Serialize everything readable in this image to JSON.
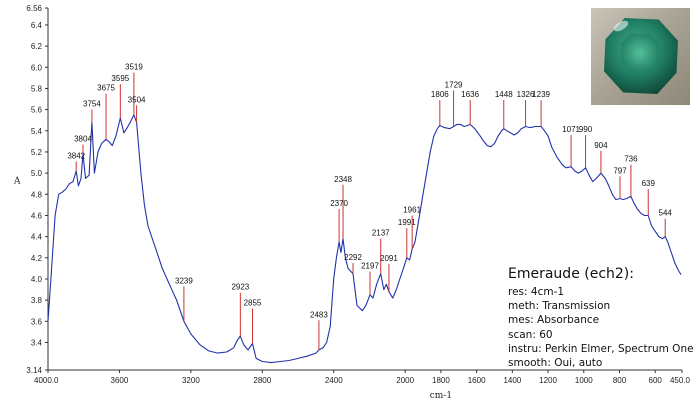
{
  "chart_data": {
    "type": "line",
    "title": "",
    "xlabel": "cm-1",
    "ylabel": "A",
    "xlim": [
      4000.0,
      450.0
    ],
    "ylim": [
      3.14,
      6.56
    ],
    "x_reversed": true,
    "line_color": "#2233aa",
    "peak_marker_color": "#cc3333",
    "x_ticks": [
      "4000.0",
      "3600",
      "3200",
      "2800",
      "2400",
      "2000",
      "1800",
      "1600",
      "1400",
      "1200",
      "1000",
      "800",
      "600",
      "450.0"
    ],
    "y_ticks": [
      "3.14",
      "3.4",
      "3.6",
      "3.8",
      "4.0",
      "4.2",
      "4.4",
      "4.6",
      "4.8",
      "5.0",
      "5.2",
      "5.4",
      "5.6",
      "5.8",
      "6.0",
      "6.2",
      "6.4",
      "6.56"
    ],
    "series": [
      {
        "points": [
          [
            4000,
            3.6
          ],
          [
            3980,
            4.1
          ],
          [
            3960,
            4.6
          ],
          [
            3940,
            4.8
          ],
          [
            3920,
            4.82
          ],
          [
            3900,
            4.85
          ],
          [
            3880,
            4.9
          ],
          [
            3860,
            4.92
          ],
          [
            3842,
            5.02
          ],
          [
            3830,
            4.88
          ],
          [
            3815,
            4.95
          ],
          [
            3804,
            5.18
          ],
          [
            3790,
            4.95
          ],
          [
            3770,
            4.98
          ],
          [
            3754,
            5.48
          ],
          [
            3740,
            5.0
          ],
          [
            3720,
            5.2
          ],
          [
            3700,
            5.28
          ],
          [
            3675,
            5.32
          ],
          [
            3660,
            5.3
          ],
          [
            3640,
            5.26
          ],
          [
            3620,
            5.35
          ],
          [
            3595,
            5.52
          ],
          [
            3575,
            5.38
          ],
          [
            3560,
            5.42
          ],
          [
            3540,
            5.48
          ],
          [
            3519,
            5.55
          ],
          [
            3504,
            5.48
          ],
          [
            3480,
            5.0
          ],
          [
            3460,
            4.7
          ],
          [
            3440,
            4.5
          ],
          [
            3400,
            4.3
          ],
          [
            3360,
            4.1
          ],
          [
            3320,
            3.95
          ],
          [
            3280,
            3.8
          ],
          [
            3239,
            3.6
          ],
          [
            3200,
            3.48
          ],
          [
            3150,
            3.38
          ],
          [
            3100,
            3.32
          ],
          [
            3050,
            3.3
          ],
          [
            3000,
            3.31
          ],
          [
            2960,
            3.35
          ],
          [
            2940,
            3.42
          ],
          [
            2923,
            3.46
          ],
          [
            2905,
            3.38
          ],
          [
            2880,
            3.33
          ],
          [
            2855,
            3.39
          ],
          [
            2835,
            3.25
          ],
          [
            2800,
            3.22
          ],
          [
            2750,
            3.21
          ],
          [
            2700,
            3.22
          ],
          [
            2650,
            3.23
          ],
          [
            2600,
            3.25
          ],
          [
            2550,
            3.27
          ],
          [
            2500,
            3.3
          ],
          [
            2483,
            3.33
          ],
          [
            2460,
            3.35
          ],
          [
            2440,
            3.4
          ],
          [
            2420,
            3.55
          ],
          [
            2400,
            4.0
          ],
          [
            2385,
            4.2
          ],
          [
            2370,
            4.35
          ],
          [
            2360,
            4.25
          ],
          [
            2348,
            4.38
          ],
          [
            2335,
            4.2
          ],
          [
            2320,
            4.1
          ],
          [
            2292,
            4.05
          ],
          [
            2270,
            3.75
          ],
          [
            2240,
            3.7
          ],
          [
            2220,
            3.75
          ],
          [
            2197,
            3.85
          ],
          [
            2180,
            3.82
          ],
          [
            2160,
            3.95
          ],
          [
            2137,
            4.05
          ],
          [
            2120,
            3.9
          ],
          [
            2105,
            3.95
          ],
          [
            2091,
            3.88
          ],
          [
            2070,
            3.82
          ],
          [
            2050,
            3.9
          ],
          [
            2030,
            4.0
          ],
          [
            2010,
            4.1
          ],
          [
            1991,
            4.2
          ],
          [
            1975,
            4.18
          ],
          [
            1961,
            4.28
          ],
          [
            1945,
            4.35
          ],
          [
            1920,
            4.6
          ],
          [
            1900,
            4.8
          ],
          [
            1880,
            5.0
          ],
          [
            1860,
            5.2
          ],
          [
            1840,
            5.35
          ],
          [
            1820,
            5.42
          ],
          [
            1806,
            5.45
          ],
          [
            1780,
            5.43
          ],
          [
            1750,
            5.42
          ],
          [
            1729,
            5.44
          ],
          [
            1710,
            5.46
          ],
          [
            1690,
            5.46
          ],
          [
            1670,
            5.44
          ],
          [
            1650,
            5.45
          ],
          [
            1636,
            5.46
          ],
          [
            1610,
            5.42
          ],
          [
            1580,
            5.35
          ],
          [
            1560,
            5.3
          ],
          [
            1540,
            5.26
          ],
          [
            1520,
            5.25
          ],
          [
            1500,
            5.28
          ],
          [
            1480,
            5.35
          ],
          [
            1460,
            5.4
          ],
          [
            1448,
            5.42
          ],
          [
            1430,
            5.4
          ],
          [
            1410,
            5.38
          ],
          [
            1390,
            5.36
          ],
          [
            1370,
            5.38
          ],
          [
            1350,
            5.42
          ],
          [
            1326,
            5.44
          ],
          [
            1300,
            5.43
          ],
          [
            1270,
            5.44
          ],
          [
            1239,
            5.44
          ],
          [
            1220,
            5.4
          ],
          [
            1200,
            5.35
          ],
          [
            1180,
            5.25
          ],
          [
            1150,
            5.15
          ],
          [
            1120,
            5.08
          ],
          [
            1100,
            5.05
          ],
          [
            1071,
            5.06
          ],
          [
            1050,
            5.02
          ],
          [
            1030,
            5.0
          ],
          [
            1010,
            5.02
          ],
          [
            990,
            5.05
          ],
          [
            970,
            4.98
          ],
          [
            950,
            4.92
          ],
          [
            930,
            4.95
          ],
          [
            904,
            5.0
          ],
          [
            880,
            4.95
          ],
          [
            860,
            4.88
          ],
          [
            840,
            4.8
          ],
          [
            820,
            4.75
          ],
          [
            797,
            4.76
          ],
          [
            780,
            4.75
          ],
          [
            760,
            4.76
          ],
          [
            736,
            4.78
          ],
          [
            720,
            4.72
          ],
          [
            700,
            4.66
          ],
          [
            680,
            4.62
          ],
          [
            660,
            4.6
          ],
          [
            639,
            4.6
          ],
          [
            620,
            4.5
          ],
          [
            600,
            4.45
          ],
          [
            580,
            4.4
          ],
          [
            560,
            4.38
          ],
          [
            544,
            4.4
          ],
          [
            530,
            4.35
          ],
          [
            510,
            4.25
          ],
          [
            490,
            4.15
          ],
          [
            470,
            4.08
          ],
          [
            455,
            4.04
          ]
        ]
      }
    ],
    "peak_labels": [
      {
        "label": "3842",
        "x": 3842,
        "y": 5.02,
        "ty": 5.11
      },
      {
        "label": "3804",
        "x": 3804,
        "y": 5.18,
        "ty": 5.27
      },
      {
        "label": "3754",
        "x": 3754,
        "y": 5.48,
        "ty": 5.6
      },
      {
        "label": "3675",
        "x": 3675,
        "y": 5.32,
        "ty": 5.75
      },
      {
        "label": "3595",
        "x": 3595,
        "y": 5.52,
        "ty": 5.84
      },
      {
        "label": "3519",
        "x": 3519,
        "y": 5.55,
        "ty": 5.95
      },
      {
        "label": "3504",
        "x": 3504,
        "y": 5.48,
        "ty": 5.64
      },
      {
        "label": "3239",
        "x": 3239,
        "y": 3.6,
        "ty": 3.93
      },
      {
        "label": "2923",
        "x": 2923,
        "y": 3.46,
        "ty": 3.87
      },
      {
        "label": "2855",
        "x": 2855,
        "y": 3.39,
        "ty": 3.72
      },
      {
        "label": "2483",
        "x": 2483,
        "y": 3.33,
        "ty": 3.61
      },
      {
        "label": "2348",
        "x": 2348,
        "y": 4.38,
        "ty": 4.89
      },
      {
        "label": "2370",
        "x": 2370,
        "y": 4.35,
        "ty": 4.66
      },
      {
        "label": "2292",
        "x": 2292,
        "y": 4.05,
        "ty": 4.15
      },
      {
        "label": "2197",
        "x": 2197,
        "y": 3.85,
        "ty": 4.07
      },
      {
        "label": "2137",
        "x": 2137,
        "y": 4.05,
        "ty": 4.38
      },
      {
        "label": "2091",
        "x": 2091,
        "y": 3.88,
        "ty": 4.14
      },
      {
        "label": "1991",
        "x": 1991,
        "y": 4.2,
        "ty": 4.48
      },
      {
        "label": "1961",
        "x": 1961,
        "y": 4.28,
        "ty": 4.6
      },
      {
        "label": "1806",
        "x": 1806,
        "y": 5.45,
        "ty": 5.69
      },
      {
        "label": "1729",
        "x": 1729,
        "y": 5.44,
        "ty": 5.78
      },
      {
        "label": "1636",
        "x": 1636,
        "y": 5.46,
        "ty": 5.69
      },
      {
        "label": "1448",
        "x": 1448,
        "y": 5.42,
        "ty": 5.69
      },
      {
        "label": "1326",
        "x": 1326,
        "y": 5.44,
        "ty": 5.69
      },
      {
        "label": "1239",
        "x": 1239,
        "y": 5.44,
        "ty": 5.69
      },
      {
        "label": "1071",
        "x": 1071,
        "y": 5.06,
        "ty": 5.36
      },
      {
        "label": "990",
        "x": 990,
        "y": 5.05,
        "ty": 5.36
      },
      {
        "label": "904",
        "x": 904,
        "y": 5.0,
        "ty": 5.21
      },
      {
        "label": "797",
        "x": 797,
        "y": 4.76,
        "ty": 4.97
      },
      {
        "label": "736",
        "x": 736,
        "y": 4.78,
        "ty": 5.08
      },
      {
        "label": "639",
        "x": 639,
        "y": 4.6,
        "ty": 4.85
      },
      {
        "label": "544",
        "x": 544,
        "y": 4.4,
        "ty": 4.57
      }
    ]
  },
  "info_box": {
    "title": "Emeraude (ech2):",
    "lines": [
      "res: 4cm-1",
      "meth: Transmission",
      "mes: Absorbance",
      "scan: 60",
      "instru: Perkin Elmer, Spectrum One",
      "smooth: Oui, auto"
    ]
  },
  "photo": {
    "icon": "emerald-gem-photo"
  }
}
